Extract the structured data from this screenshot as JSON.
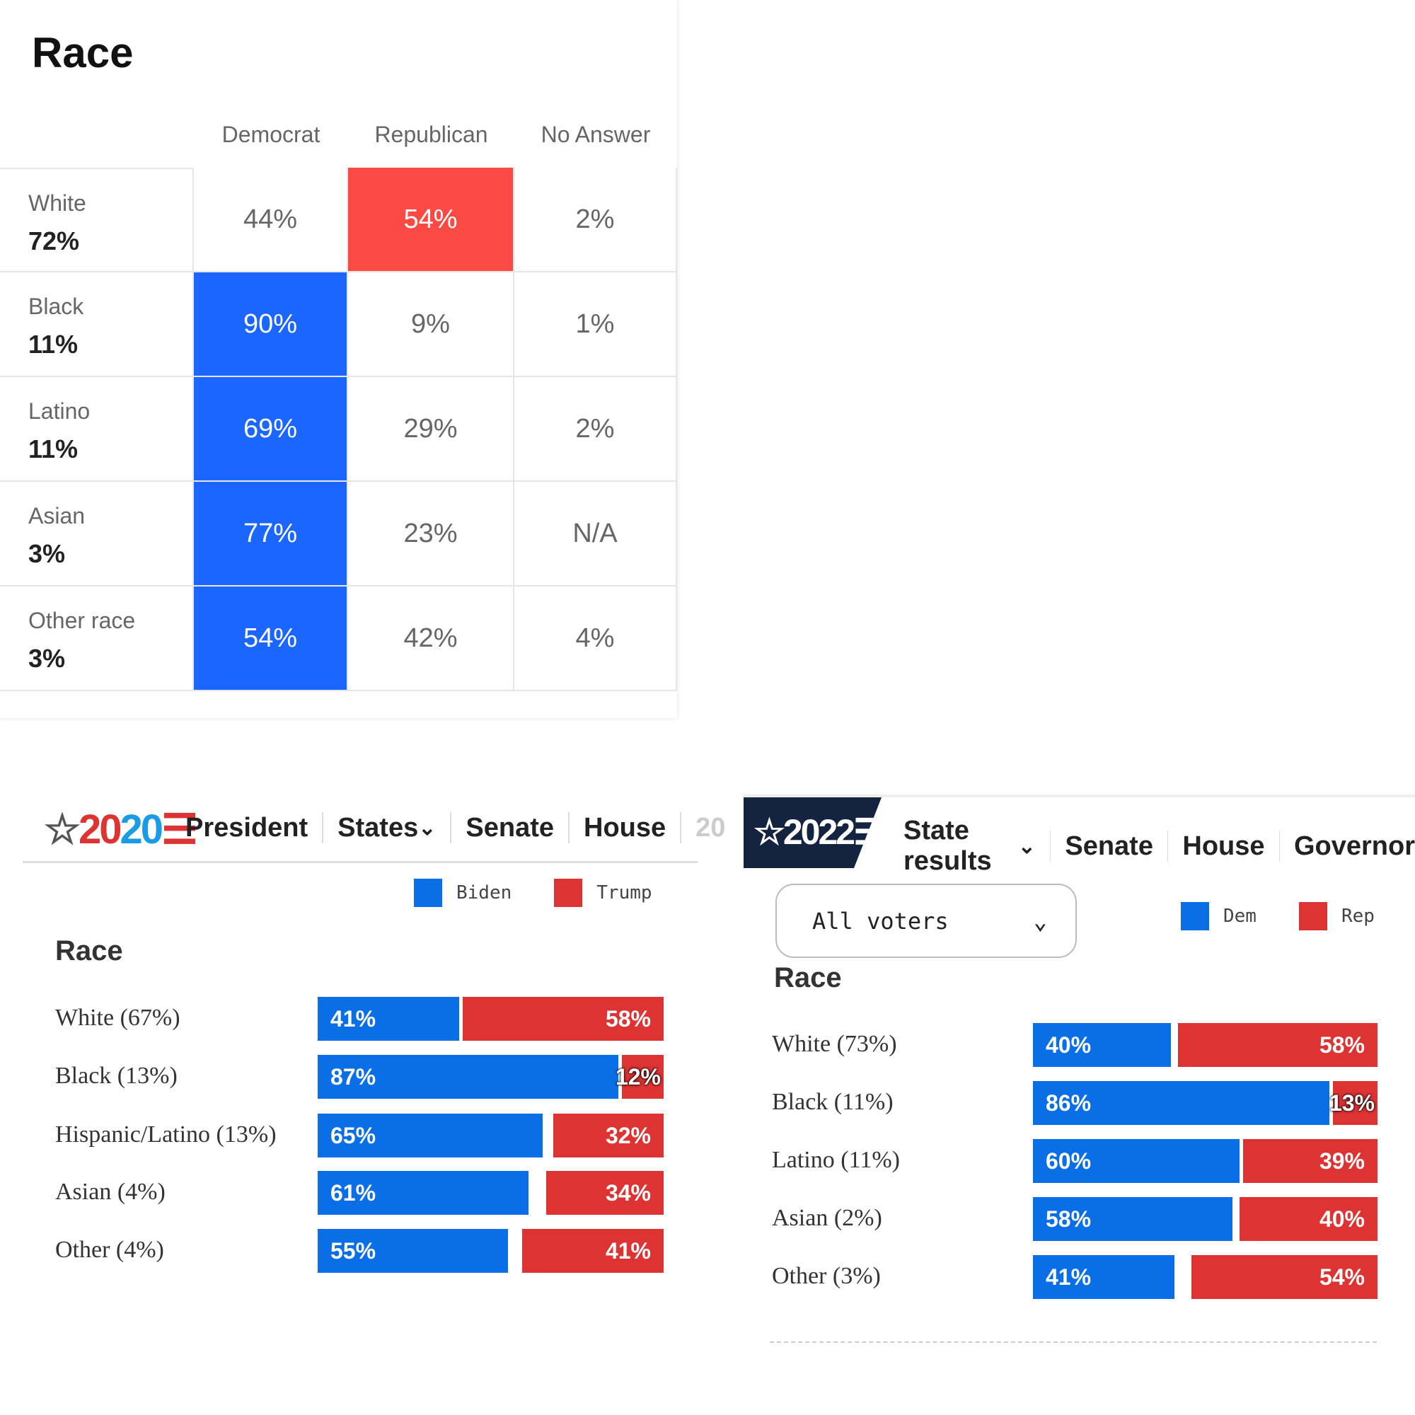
{
  "exit_poll_table": {
    "title": "Race",
    "columns": [
      "Democrat",
      "Republican",
      "No Answer"
    ],
    "rows": [
      {
        "group": "White",
        "share": "72%",
        "values": [
          "44%",
          "54%",
          "2%"
        ],
        "winner": 1
      },
      {
        "group": "Black",
        "share": "11%",
        "values": [
          "90%",
          "9%",
          "1%"
        ],
        "winner": 0
      },
      {
        "group": "Latino",
        "share": "11%",
        "values": [
          "69%",
          "29%",
          "2%"
        ],
        "winner": 0
      },
      {
        "group": "Asian",
        "share": "3%",
        "values": [
          "77%",
          "23%",
          "N/A"
        ],
        "winner": 0
      },
      {
        "group": "Other race",
        "share": "3%",
        "values": [
          "54%",
          "42%",
          "4%"
        ],
        "winner": 0
      }
    ]
  },
  "nav2020": {
    "logo": "2020",
    "items": [
      "President",
      "States",
      "Senate",
      "House",
      "20"
    ]
  },
  "nav2022": {
    "logo": "2022",
    "items": [
      "State results",
      "Senate",
      "House",
      "Governor"
    ],
    "dropdown": "All voters"
  },
  "colors": {
    "dem": "#0a6fe6",
    "rep": "#dd3333",
    "table_dem": "#1a66ff",
    "table_rep": "#fa4a43",
    "navy": "#14233f"
  },
  "chart_data": [
    {
      "type": "bar",
      "title": "Race",
      "legend": [
        "Biden",
        "Trump"
      ],
      "categories": [
        "White (67%)",
        "Black (13%)",
        "Hispanic/Latino (13%)",
        "Asian (4%)",
        "Other (4%)"
      ],
      "series": [
        {
          "name": "Biden",
          "values": [
            41,
            87,
            65,
            61,
            55
          ]
        },
        {
          "name": "Trump",
          "values": [
            58,
            12,
            32,
            34,
            41
          ]
        }
      ]
    },
    {
      "type": "bar",
      "title": "Race",
      "legend": [
        "Dem",
        "Rep"
      ],
      "categories": [
        "White (73%)",
        "Black (11%)",
        "Latino (11%)",
        "Asian (2%)",
        "Other (3%)"
      ],
      "series": [
        {
          "name": "Dem",
          "values": [
            40,
            86,
            60,
            58,
            41
          ]
        },
        {
          "name": "Rep",
          "values": [
            58,
            13,
            39,
            40,
            54
          ]
        }
      ]
    }
  ]
}
